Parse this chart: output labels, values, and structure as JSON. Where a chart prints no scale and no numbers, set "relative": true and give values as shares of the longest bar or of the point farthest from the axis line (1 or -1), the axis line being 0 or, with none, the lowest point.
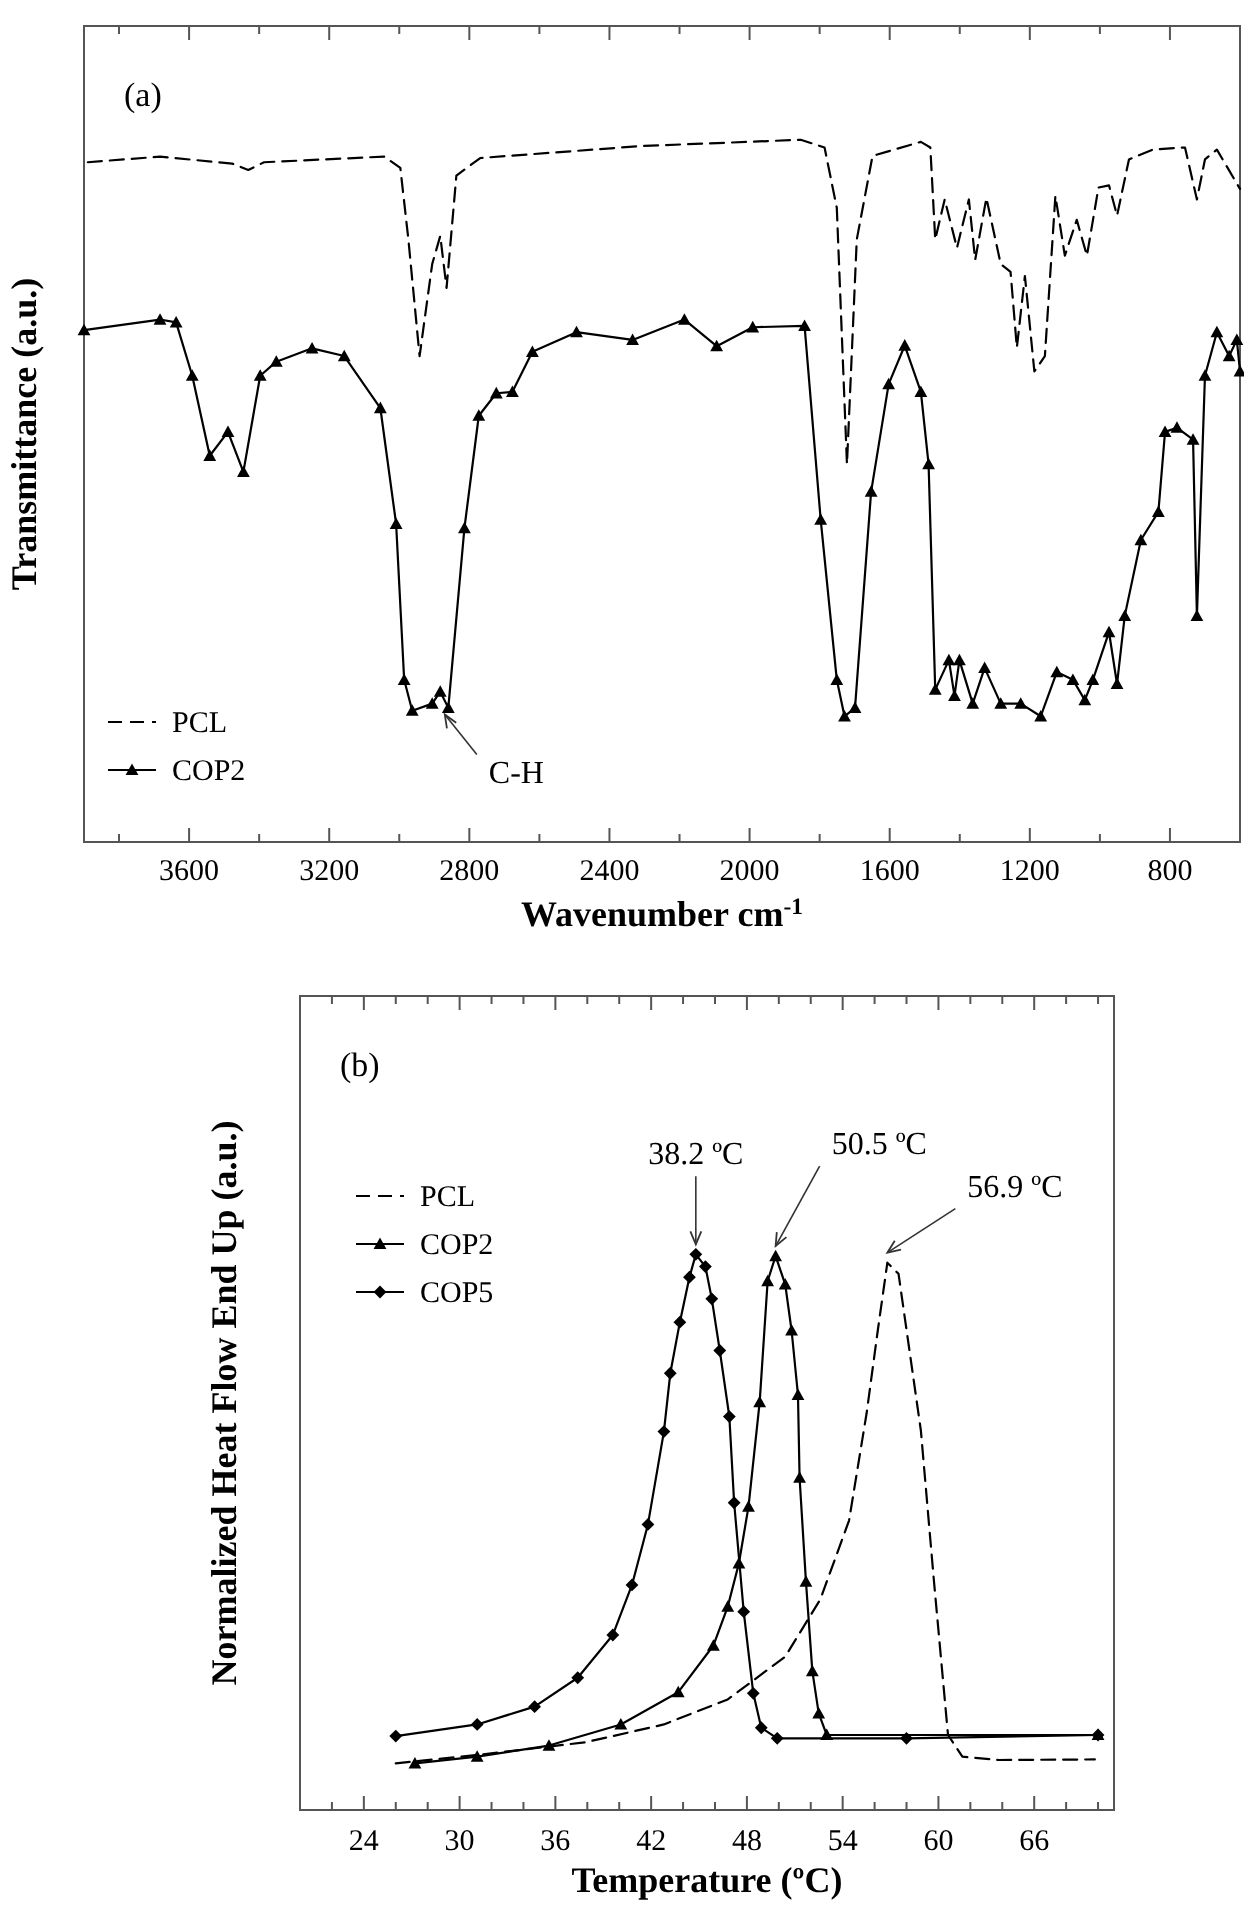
{
  "chart_data": [
    {
      "type": "line",
      "title": "(a)",
      "xlabel": "Wavenumber cm$^{-1}$",
      "ylabel": "Transmittance (a.u.)",
      "relative": true,
      "tick_labels": "x",
      "legend": "bottom left",
      "grid": false,
      "xlim": [
        3900,
        600
      ],
      "xticks": [
        {
          "value": 3800,
          "label": null
        },
        3600,
        {
          "value": 3400,
          "label": null
        },
        3200,
        {
          "value": 3000,
          "label": null
        },
        2800,
        {
          "value": 2600,
          "label": null
        },
        2400,
        {
          "value": 2200,
          "label": null
        },
        2000,
        {
          "value": 1800,
          "label": null
        },
        1600,
        {
          "value": 1400,
          "label": null
        },
        1200,
        {
          "value": 1000,
          "label": null
        },
        800
      ],
      "annotations": [
        {
          "text": "C-H",
          "x": 2870,
          "y": 0.19
        }
      ],
      "series": [
        {
          "name": "PCL",
          "color": "#000000",
          "line_style": "dashed",
          "marker": "none",
          "x": [
            3889,
            3683,
            3477,
            3431,
            3386,
            3043,
            2997,
            2974,
            2942,
            2906,
            2883,
            2865,
            2837,
            2769,
            2311,
            1854,
            1786,
            1751,
            1722,
            1694,
            1649,
            1511,
            1484,
            1470,
            1443,
            1408,
            1374,
            1356,
            1324,
            1283,
            1255,
            1237,
            1214,
            1187,
            1157,
            1127,
            1100,
            1066,
            1037,
            1004,
            974,
            951,
            917,
            849,
            757,
            723,
            700,
            666,
            600
          ],
          "values": [
            0.968,
            0.976,
            0.966,
            0.957,
            0.968,
            0.976,
            0.96,
            0.858,
            0.692,
            0.823,
            0.863,
            0.789,
            0.949,
            0.974,
            0.991,
            1.0,
            0.989,
            0.903,
            0.538,
            0.858,
            0.977,
            0.997,
            0.989,
            0.858,
            0.915,
            0.846,
            0.915,
            0.829,
            0.917,
            0.823,
            0.812,
            0.704,
            0.806,
            0.67,
            0.692,
            0.92,
            0.835,
            0.886,
            0.835,
            0.932,
            0.935,
            0.892,
            0.972,
            0.986,
            0.989,
            0.915,
            0.972,
            0.986,
            0.93
          ]
        },
        {
          "name": "COP2",
          "color": "#000000",
          "line_style": "solid",
          "marker": "triangle",
          "x": [
            3900,
            3683,
            3637,
            3591,
            3541,
            3489,
            3445,
            3397,
            3351,
            3249,
            3157,
            3054,
            3009,
            2986,
            2963,
            2906,
            2883,
            2860,
            2814,
            2773,
            2723,
            2677,
            2620,
            2494,
            2334,
            2186,
            2094,
            1991,
            1843,
            1797,
            1751,
            1729,
            1699,
            1653,
            1603,
            1557,
            1511,
            1489,
            1470,
            1431,
            1415,
            1401,
            1363,
            1329,
            1283,
            1226,
            1169,
            1123,
            1077,
            1043,
            1020,
            974,
            951,
            929,
            883,
            833,
            814,
            780,
            734,
            723,
            700,
            666,
            631,
            609,
            600
          ],
          "values": [
            0.729,
            0.744,
            0.74,
            0.664,
            0.55,
            0.584,
            0.527,
            0.664,
            0.684,
            0.703,
            0.692,
            0.618,
            0.453,
            0.231,
            0.187,
            0.197,
            0.214,
            0.191,
            0.447,
            0.607,
            0.639,
            0.641,
            0.698,
            0.726,
            0.715,
            0.744,
            0.706,
            0.733,
            0.735,
            0.459,
            0.231,
            0.179,
            0.191,
            0.499,
            0.652,
            0.707,
            0.641,
            0.538,
            0.217,
            0.259,
            0.208,
            0.259,
            0.197,
            0.248,
            0.197,
            0.197,
            0.179,
            0.242,
            0.231,
            0.202,
            0.231,
            0.299,
            0.225,
            0.322,
            0.43,
            0.47,
            0.584,
            0.59,
            0.573,
            0.322,
            0.664,
            0.726,
            0.692,
            0.715,
            0.67
          ]
        }
      ]
    },
    {
      "type": "line",
      "title": "(b)",
      "xlabel": "Temperature (ºC)",
      "ylabel": "Normalized Heat Flow End Up (a.u.)",
      "relative": true,
      "tick_labels": "x",
      "legend": "top left",
      "grid": false,
      "xlim": [
        20,
        71
      ],
      "xticks": [
        {
          "value": 22,
          "label": null
        },
        24,
        {
          "value": 26,
          "label": null
        },
        {
          "value": 28,
          "label": null
        },
        30,
        {
          "value": 32,
          "label": null
        },
        {
          "value": 34,
          "label": null
        },
        36,
        {
          "value": 38,
          "label": null
        },
        {
          "value": 40,
          "label": null
        },
        42,
        {
          "value": 44,
          "label": null
        },
        {
          "value": 46,
          "label": null
        },
        48,
        {
          "value": 50,
          "label": null
        },
        {
          "value": 52,
          "label": null
        },
        54,
        {
          "value": 56,
          "label": null
        },
        {
          "value": 58,
          "label": null
        },
        60,
        {
          "value": 62,
          "label": null
        },
        {
          "value": 64,
          "label": null
        },
        66,
        {
          "value": 68,
          "label": null
        },
        {
          "value": 70,
          "label": null
        }
      ],
      "annotations": [
        {
          "text": "38.2 ºC",
          "x": 44.8,
          "y": 1.0
        },
        {
          "text": "50.5 ºC",
          "x": 49.8,
          "y": 0.997
        },
        {
          "text": "56.9 ºC",
          "x": 56.8,
          "y": 0.985
        }
      ],
      "series": [
        {
          "name": "PCL",
          "color": "#000000",
          "line_style": "dashed",
          "marker": "none",
          "x": [
            26.0,
            31.1,
            37.9,
            42.8,
            46.8,
            50.4,
            52.6,
            54.4,
            55.5,
            56.2,
            56.8,
            57.5,
            58.9,
            59.7,
            60.6,
            61.5,
            63.8,
            69.8
          ],
          "values": [
            0.084,
            0.099,
            0.122,
            0.154,
            0.199,
            0.276,
            0.379,
            0.521,
            0.714,
            0.863,
            0.985,
            0.965,
            0.683,
            0.418,
            0.135,
            0.096,
            0.09,
            0.091
          ]
        },
        {
          "name": "COP2",
          "color": "#000000",
          "line_style": "solid",
          "marker": "triangle",
          "x": [
            27.2,
            31.1,
            35.6,
            40.1,
            43.7,
            45.9,
            46.8,
            47.5,
            48.1,
            48.8,
            49.3,
            49.8,
            50.4,
            50.8,
            51.2,
            51.3,
            51.7,
            52.1,
            52.5,
            53.0,
            70.0
          ],
          "values": [
            0.084,
            0.096,
            0.116,
            0.154,
            0.212,
            0.296,
            0.366,
            0.444,
            0.546,
            0.734,
            0.952,
            0.997,
            0.946,
            0.863,
            0.747,
            0.598,
            0.411,
            0.25,
            0.174,
            0.135,
            0.135
          ]
        },
        {
          "name": "COP5",
          "color": "#000000",
          "line_style": "solid",
          "marker": "diamond",
          "x": [
            26.0,
            31.1,
            34.7,
            37.4,
            39.6,
            40.8,
            41.8,
            42.8,
            43.2,
            43.8,
            44.4,
            44.8,
            45.4,
            45.8,
            46.3,
            46.9,
            47.2,
            47.8,
            48.4,
            48.9,
            49.9,
            58.0,
            70.0
          ],
          "values": [
            0.133,
            0.154,
            0.186,
            0.238,
            0.315,
            0.405,
            0.514,
            0.681,
            0.786,
            0.878,
            0.959,
            1.0,
            0.978,
            0.92,
            0.827,
            0.708,
            0.553,
            0.357,
            0.21,
            0.148,
            0.129,
            0.129,
            0.135
          ]
        }
      ]
    }
  ]
}
